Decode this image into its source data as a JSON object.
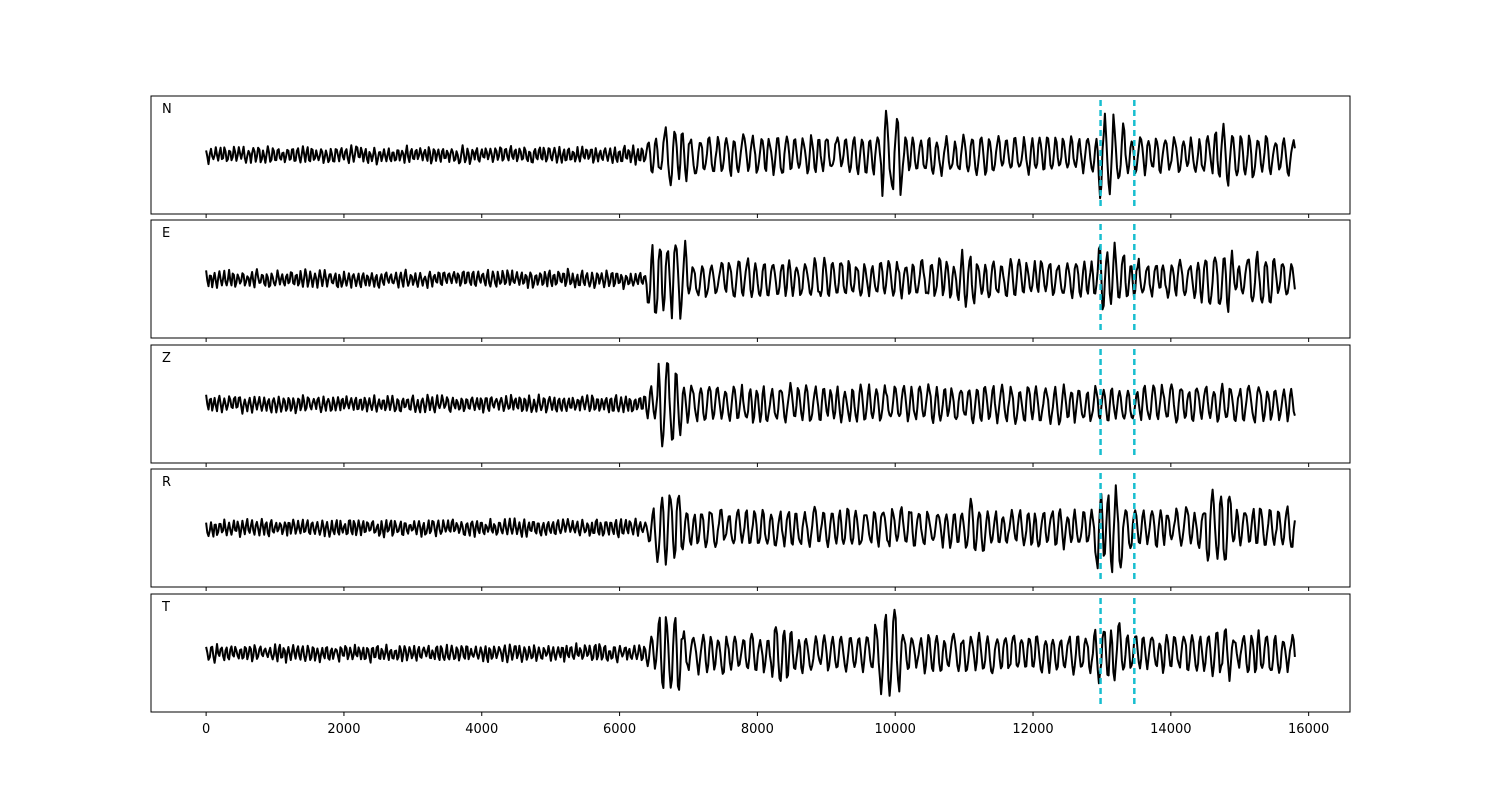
{
  "chart_data": {
    "type": "line",
    "title": "",
    "xlabel": "",
    "ylabel": "",
    "xlim": [
      -800,
      16600
    ],
    "x_ticks": [
      0,
      2000,
      4000,
      6000,
      8000,
      10000,
      12000,
      14000,
      16000
    ],
    "x_tick_labels": [
      "0",
      "2000",
      "4000",
      "6000",
      "8000",
      "10000",
      "12000",
      "14000",
      "16000"
    ],
    "markers": [
      12980,
      13470
    ],
    "x_end": 15800,
    "colors": {
      "trace": "#000000",
      "marker": "#17becf"
    },
    "panels": [
      {
        "label": "N",
        "seed": 11,
        "events": [
          [
            6700,
            6900,
            0.7
          ],
          [
            7500,
            7700,
            0.5
          ],
          [
            9900,
            10000,
            1.0
          ],
          [
            13050,
            13250,
            0.95
          ],
          [
            14700,
            14800,
            0.8
          ],
          [
            15000,
            15100,
            0.6
          ]
        ],
        "noise": 0.25
      },
      {
        "label": "E",
        "seed": 23,
        "events": [
          [
            6500,
            6900,
            1.0
          ],
          [
            11000,
            11100,
            0.7
          ],
          [
            13050,
            13250,
            0.8
          ],
          [
            14500,
            14800,
            0.7
          ],
          [
            15200,
            15400,
            0.6
          ]
        ],
        "noise": 0.3
      },
      {
        "label": "Z",
        "seed": 37,
        "events": [
          [
            6650,
            6800,
            1.0
          ],
          [
            8000,
            8200,
            0.3
          ],
          [
            9600,
            9800,
            0.35
          ],
          [
            15300,
            15400,
            0.4
          ]
        ],
        "noise": 0.15
      },
      {
        "label": "R",
        "seed": 41,
        "events": [
          [
            6600,
            6800,
            0.9
          ],
          [
            11100,
            11200,
            0.6
          ],
          [
            13000,
            13200,
            1.0
          ],
          [
            14600,
            14800,
            1.0
          ],
          [
            15300,
            15500,
            0.5
          ]
        ],
        "noise": 0.3
      },
      {
        "label": "T",
        "seed": 53,
        "events": [
          [
            6650,
            6800,
            1.0
          ],
          [
            8300,
            8400,
            0.8
          ],
          [
            9800,
            10000,
            1.0
          ],
          [
            13000,
            13200,
            0.7
          ],
          [
            14700,
            14800,
            0.6
          ],
          [
            15300,
            15400,
            0.6
          ]
        ],
        "noise": 0.3
      }
    ]
  }
}
